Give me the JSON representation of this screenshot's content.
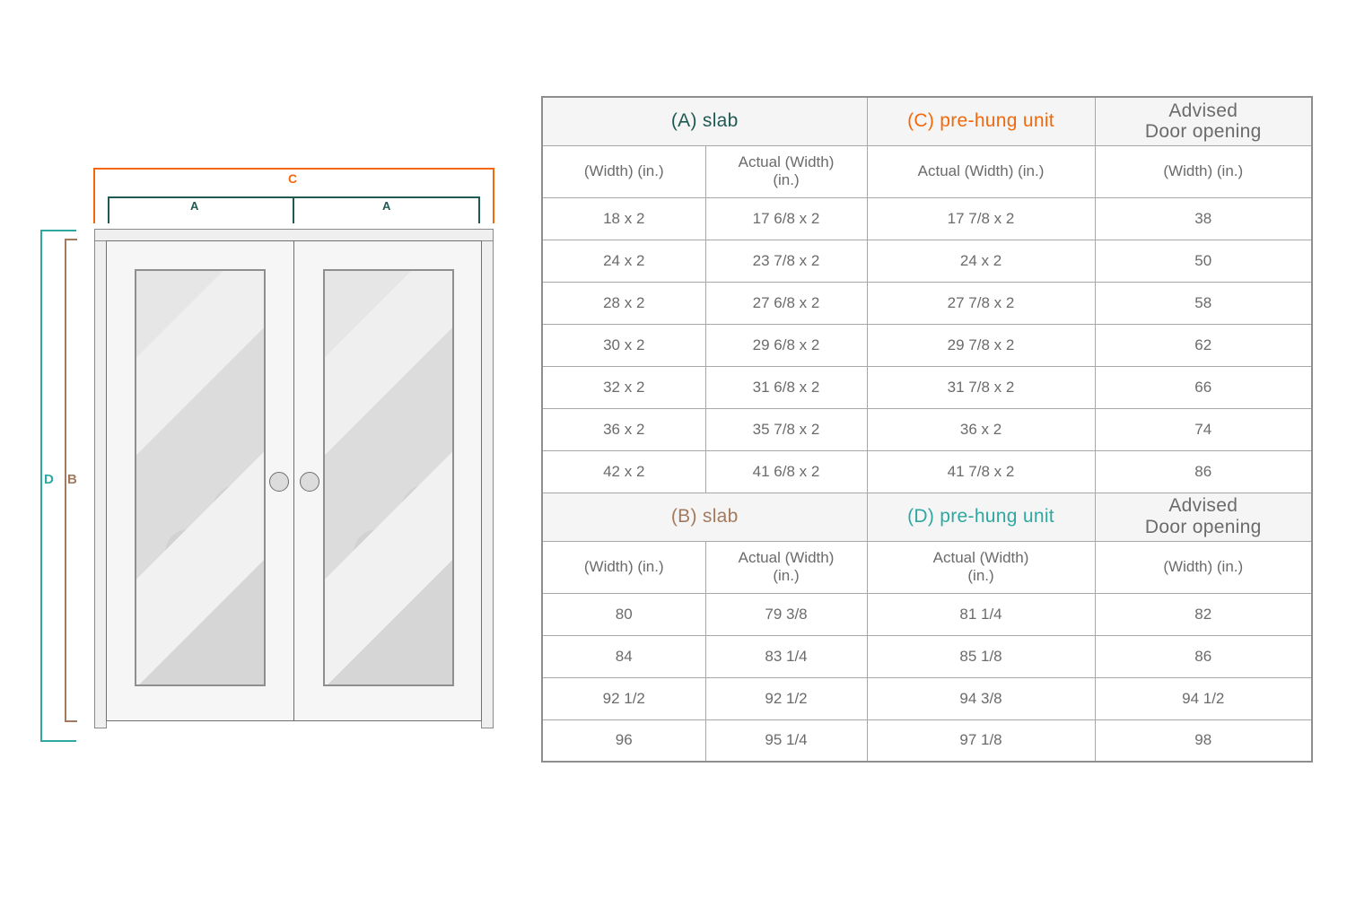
{
  "diagram": {
    "labels": {
      "c": "C",
      "a_left": "A",
      "a_right": "A",
      "d": "D",
      "b": "B"
    },
    "colors": {
      "c_accent": "#f2690d",
      "a_accent": "#1f5a52",
      "d_accent": "#2ea8a1",
      "b_accent": "#a37a5e"
    }
  },
  "table": {
    "text_color": "#6b6b6b",
    "sections": [
      {
        "band": [
          {
            "text": "(A) slab",
            "color": "#1f5a52"
          },
          {
            "text": "(C) pre-hung unit",
            "color": "#f2690d"
          },
          {
            "text": "Advised\nDoor opening",
            "color": "#6b6b6b"
          }
        ],
        "subheaders": [
          "(Width) (in.)",
          "Actual (Width)\n(in.)",
          "Actual (Width) (in.)",
          "(Width) (in.)"
        ],
        "rows": [
          [
            "18 x 2",
            "17 6/8 x 2",
            "17 7/8 x 2",
            "38"
          ],
          [
            "24 x 2",
            "23 7/8 x 2",
            "24 x 2",
            "50"
          ],
          [
            "28 x 2",
            "27 6/8 x 2",
            "27 7/8 x 2",
            "58"
          ],
          [
            "30 x 2",
            "29 6/8 x 2",
            "29 7/8 x 2",
            "62"
          ],
          [
            "32 x 2",
            "31 6/8 x 2",
            "31 7/8 x 2",
            "66"
          ],
          [
            "36 x 2",
            "35 7/8 x 2",
            "36 x 2",
            "74"
          ],
          [
            "42 x 2",
            "41 6/8 x 2",
            "41 7/8 x 2",
            "86"
          ]
        ]
      },
      {
        "band": [
          {
            "text": "(B) slab",
            "color": "#a37a5e"
          },
          {
            "text": "(D) pre-hung unit",
            "color": "#2ea8a1"
          },
          {
            "text": "Advised\nDoor opening",
            "color": "#6b6b6b"
          }
        ],
        "subheaders": [
          "(Width) (in.)",
          "Actual (Width)\n(in.)",
          "Actual (Width)\n(in.)",
          "(Width) (in.)"
        ],
        "rows": [
          [
            "80",
            "79 3/8",
            "81 1/4",
            "82"
          ],
          [
            "84",
            "83 1/4",
            "85 1/8",
            "86"
          ],
          [
            "92 1/2",
            "92 1/2",
            "94 3/8",
            "94 1/2"
          ],
          [
            "96",
            "95 1/4",
            "97 1/8",
            "98"
          ]
        ]
      }
    ]
  }
}
